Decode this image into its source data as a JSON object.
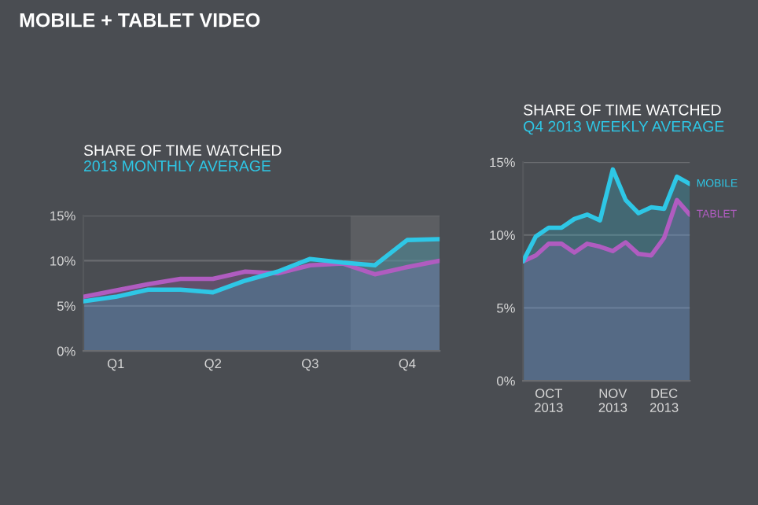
{
  "chart_data": [
    {
      "type": "area",
      "title": "SHARE OF TIME WATCHED",
      "subtitle": "2013 MONTHLY AVERAGE",
      "annotations": [
        "MOBILE + TABLET VIDEO"
      ],
      "categories": [
        null,
        "Q1",
        null,
        null,
        "Q2",
        null,
        null,
        "Q3",
        null,
        null,
        "Q4",
        null
      ],
      "series": [
        {
          "color": "#b05cc0",
          "values": [
            6.0,
            6.7,
            7.4,
            8.0,
            8.0,
            8.8,
            8.6,
            9.5,
            9.7,
            8.5,
            9.3,
            10.0
          ]
        },
        {
          "color": "#2ec7e6",
          "values": [
            5.5,
            6.0,
            6.8,
            6.8,
            6.5,
            7.8,
            8.8,
            10.2,
            9.8,
            9.5,
            12.3,
            12.4
          ]
        }
      ],
      "ylim": [
        0,
        15
      ],
      "yticks": [
        {
          "value": 0,
          "label": "0%"
        },
        {
          "value": 5,
          "label": "5%"
        },
        {
          "value": 10,
          "label": "10%"
        },
        {
          "value": 15,
          "label": "15%"
        }
      ],
      "grid": "y",
      "legend": false
    },
    {
      "type": "area",
      "title": "SHARE OF TIME WATCHED",
      "subtitle": "Q4 2013 WEEKLY AVERAGE",
      "categories": [
        null,
        null,
        "OCT\n2013",
        null,
        null,
        null,
        null,
        "NOV\n2013",
        null,
        null,
        null,
        "DEC\n2013",
        null,
        null
      ],
      "series": [
        {
          "name": "TABLET",
          "color": "#b05cc0",
          "values": [
            8.2,
            8.6,
            9.4,
            9.4,
            8.8,
            9.4,
            9.2,
            8.9,
            9.5,
            8.7,
            8.6,
            9.8,
            12.4,
            11.4
          ]
        },
        {
          "name": "MOBILE",
          "color": "#2ec7e6",
          "values": [
            8.2,
            9.9,
            10.5,
            10.5,
            11.1,
            11.4,
            11.0,
            14.5,
            12.4,
            11.5,
            11.9,
            11.8,
            14.0,
            13.5
          ]
        }
      ],
      "ylim": [
        0,
        15
      ],
      "yticks": [
        {
          "value": 0,
          "label": "0%"
        },
        {
          "value": 5,
          "label": "5%"
        },
        {
          "value": 10,
          "label": "10%"
        },
        {
          "value": 15,
          "label": "15%"
        }
      ],
      "grid": "y",
      "legend": false
    }
  ]
}
